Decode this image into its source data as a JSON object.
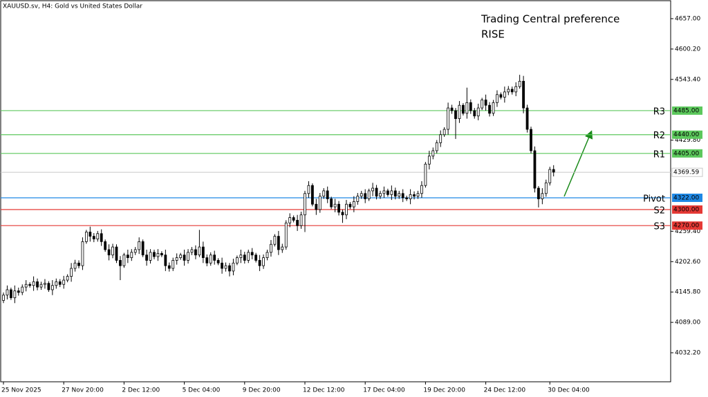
{
  "chart_data": {
    "type": "candlestick",
    "title": "XAUUSD.sv, H4:  Gold vs United States Dollar",
    "annotations": [
      "Trading Central preference",
      "RISE"
    ],
    "annotation_color": "#5cd65c",
    "up_color": "#ffffff",
    "down_color": "#000000",
    "open": [
      4130,
      4140,
      4150,
      4135,
      4148,
      4145,
      4155,
      4160,
      4158,
      4165,
      4155,
      4160,
      4162,
      4150,
      4158,
      4165,
      4160,
      4168,
      4175,
      4190,
      4200,
      4195,
      4240,
      4258,
      4250,
      4245,
      4255,
      4240,
      4225,
      4215,
      4230,
      4205,
      4195,
      4215,
      4210,
      4220,
      4225,
      4240,
      4215,
      4205,
      4220,
      4212,
      4218,
      4215,
      4195,
      4190,
      4205,
      4210,
      4215,
      4205,
      4220,
      4225,
      4215,
      4230,
      4210,
      4200,
      4215,
      4205,
      4200,
      4190,
      4195,
      4185,
      4200,
      4210,
      4215,
      4205,
      4220,
      4215,
      4205,
      4195,
      4210,
      4220,
      4235,
      4250,
      4225,
      4230,
      4275,
      4285,
      4280,
      4270,
      4290,
      4330,
      4345,
      4310,
      4300,
      4325,
      4335,
      4320,
      4305,
      4310,
      4295,
      4290,
      4310,
      4305,
      4315,
      4325,
      4330,
      4320,
      4335,
      4340,
      4325,
      4330,
      4335,
      4328,
      4335,
      4325,
      4330,
      4322,
      4320,
      4328,
      4325,
      4330,
      4345,
      4385,
      4400,
      4410,
      4425,
      4440,
      4450,
      4490,
      4485,
      4470,
      4495,
      4480,
      4500,
      4485,
      4475,
      4490,
      4505,
      4495,
      4480,
      4500,
      4515,
      4510,
      4520,
      4525,
      4520,
      4530,
      4540,
      4490,
      4450,
      4410,
      4340,
      4320,
      4330,
      4350,
      4375
    ],
    "high": [
      4145,
      4158,
      4154,
      4158,
      4154,
      4160,
      4168,
      4164,
      4175,
      4171,
      4165,
      4170,
      4166,
      4168,
      4171,
      4170,
      4176,
      4179,
      4200,
      4206,
      4205,
      4248,
      4262,
      4268,
      4256,
      4260,
      4263,
      4244,
      4235,
      4236,
      4235,
      4213,
      4219,
      4225,
      4226,
      4230,
      4248,
      4244,
      4225,
      4226,
      4225,
      4226,
      4222,
      4225,
      4201,
      4210,
      4218,
      4219,
      4225,
      4226,
      4230,
      4233,
      4262,
      4240,
      4216,
      4220,
      4223,
      4209,
      4210,
      4201,
      4200,
      4208,
      4214,
      4225,
      4221,
      4225,
      4228,
      4219,
      4215,
      4216,
      4225,
      4243,
      4254,
      4260,
      4236,
      4280,
      4293,
      4289,
      4290,
      4296,
      4335,
      4353,
      4349,
      4320,
      4331,
      4340,
      4343,
      4324,
      4320,
      4316,
      4300,
      4318,
      4314,
      4325,
      4331,
      4335,
      4338,
      4339,
      4350,
      4346,
      4335,
      4343,
      4339,
      4345,
      4341,
      4335,
      4338,
      4326,
      4338,
      4334,
      4335,
      4353,
      4389,
      4410,
      4416,
      4430,
      4448,
      4454,
      4500,
      4496,
      4490,
      4503,
      4499,
      4528,
      4506,
      4490,
      4498,
      4509,
      4515,
      4501,
      4505,
      4523,
      4519,
      4530,
      4531,
      4530,
      4538,
      4552,
      4550,
      4496,
      4455,
      4418,
      4344,
      4340,
      4356,
      4380,
      4383
    ],
    "low": [
      4125,
      4132,
      4131,
      4125,
      4139,
      4140,
      4147,
      4154,
      4148,
      4149,
      4150,
      4152,
      4146,
      4140,
      4152,
      4155,
      4152,
      4164,
      4165,
      4184,
      4190,
      4187,
      4236,
      4240,
      4239,
      4240,
      4232,
      4221,
      4205,
      4209,
      4200,
      4168,
      4191,
      4200,
      4204,
      4215,
      4217,
      4211,
      4195,
      4199,
      4207,
      4204,
      4211,
      4185,
      4184,
      4185,
      4197,
      4206,
      4195,
      4199,
      4215,
      4207,
      4211,
      4200,
      4194,
      4195,
      4197,
      4196,
      4180,
      4184,
      4175,
      4177,
      4196,
      4200,
      4199,
      4200,
      4207,
      4201,
      4185,
      4189,
      4205,
      4212,
      4231,
      4215,
      4219,
      4225,
      4267,
      4276,
      4260,
      4264,
      4258,
      4322,
      4306,
      4290,
      4294,
      4320,
      4312,
      4301,
      4295,
      4289,
      4275,
      4282,
      4301,
      4295,
      4309,
      4320,
      4312,
      4316,
      4325,
      4319,
      4320,
      4322,
      4324,
      4318,
      4319,
      4320,
      4314,
      4316,
      4310,
      4319,
      4320,
      4322,
      4341,
      4375,
      4394,
      4405,
      4417,
      4436,
      4440,
      4479,
      4432,
      4462,
      4476,
      4470,
      4479,
      4470,
      4467,
      4486,
      4485,
      4474,
      4475,
      4492,
      4506,
      4500,
      4514,
      4515,
      4512,
      4526,
      4480,
      4444,
      4405,
      4332,
      4304,
      4310,
      4324,
      4345,
      4362
    ],
    "close": [
      4140,
      4150,
      4135,
      4148,
      4145,
      4155,
      4160,
      4158,
      4165,
      4155,
      4160,
      4162,
      4150,
      4158,
      4165,
      4160,
      4168,
      4175,
      4190,
      4200,
      4195,
      4240,
      4258,
      4250,
      4245,
      4255,
      4240,
      4225,
      4215,
      4230,
      4205,
      4195,
      4215,
      4210,
      4220,
      4225,
      4240,
      4215,
      4205,
      4220,
      4212,
      4218,
      4215,
      4195,
      4190,
      4205,
      4210,
      4215,
      4205,
      4220,
      4225,
      4215,
      4230,
      4210,
      4200,
      4215,
      4205,
      4200,
      4190,
      4195,
      4185,
      4200,
      4210,
      4215,
      4205,
      4220,
      4215,
      4205,
      4195,
      4210,
      4220,
      4235,
      4250,
      4225,
      4230,
      4275,
      4285,
      4280,
      4270,
      4290,
      4330,
      4345,
      4310,
      4300,
      4325,
      4335,
      4320,
      4305,
      4310,
      4295,
      4290,
      4310,
      4305,
      4315,
      4325,
      4330,
      4320,
      4335,
      4340,
      4325,
      4330,
      4335,
      4328,
      4335,
      4325,
      4330,
      4322,
      4320,
      4328,
      4325,
      4330,
      4345,
      4385,
      4400,
      4410,
      4425,
      4440,
      4450,
      4490,
      4485,
      4470,
      4495,
      4480,
      4500,
      4485,
      4475,
      4490,
      4505,
      4495,
      4480,
      4500,
      4515,
      4510,
      4520,
      4525,
      4520,
      4530,
      4540,
      4490,
      4450,
      4410,
      4340,
      4320,
      4330,
      4350,
      4375,
      4370
    ],
    "xticks": [
      {
        "value": 0,
        "label": "25 Nov 2025"
      },
      {
        "value": 16,
        "label": "27 Nov 20:00"
      },
      {
        "value": 32,
        "label": "2 Dec 12:00"
      },
      {
        "value": 48,
        "label": "5 Dec 04:00"
      },
      {
        "value": 64,
        "label": "9 Dec 20:00"
      },
      {
        "value": 80,
        "label": "12 Dec 12:00"
      },
      {
        "value": 96,
        "label": "17 Dec 04:00"
      },
      {
        "value": 112,
        "label": "19 Dec 20:00"
      },
      {
        "value": 128,
        "label": "24 Dec 12:00"
      },
      {
        "value": 145,
        "label": "30 Dec 04:00"
      }
    ],
    "ylim": [
      3977.9,
      4691.9
    ],
    "yticks": [
      {
        "value": 4657,
        "label": "4657.00"
      },
      {
        "value": 4600.2,
        "label": "4600.20"
      },
      {
        "value": 4543.4,
        "label": "4543.40"
      },
      {
        "value": 4429.8,
        "label": "4429.80"
      },
      {
        "value": 4259.4,
        "label": "4259.40"
      },
      {
        "value": 4202.6,
        "label": "4202.60"
      },
      {
        "value": 4145.8,
        "label": "4145.80"
      },
      {
        "value": 4089,
        "label": "4089.00"
      },
      {
        "value": 4032.2,
        "label": "4032.20"
      }
    ],
    "levels": [
      {
        "name": "R3",
        "value": 4485,
        "label": "4485.00",
        "color": "#5cc85c"
      },
      {
        "name": "R2",
        "value": 4440,
        "label": "4440.00",
        "color": "#5cc85c"
      },
      {
        "name": "R1",
        "value": 4405,
        "label": "4405.00",
        "color": "#5cc85c"
      },
      {
        "name": "Pivot",
        "value": 4322,
        "label": "4322.00",
        "color": "#1e88e5"
      },
      {
        "name": "S2",
        "value": 4300,
        "label": "4300.00",
        "color": "#e53935"
      },
      {
        "name": "S3",
        "value": 4270,
        "label": "4270.00",
        "color": "#e53935"
      }
    ],
    "last_price": {
      "value": 4369.59,
      "label": "4369.59",
      "color": "#c8c8c8"
    }
  }
}
